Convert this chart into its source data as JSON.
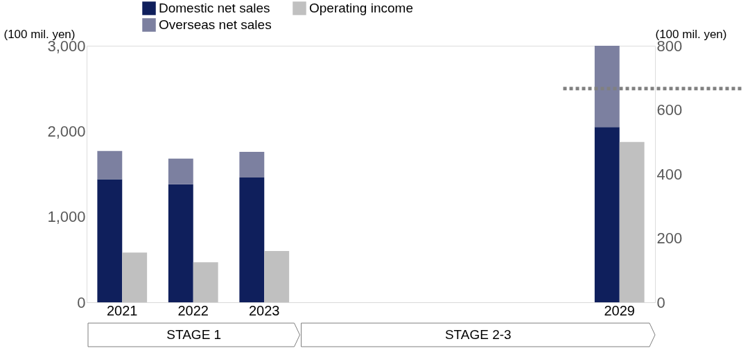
{
  "chart_data": {
    "type": "bar",
    "stacked": true,
    "categories": [
      "2021",
      "2022",
      "2023",
      null,
      null,
      null,
      null,
      "2029"
    ],
    "series": [
      {
        "name": "Domestic net sales",
        "color": "#0f1f5c",
        "values": [
          1440,
          1380,
          1460,
          null,
          null,
          null,
          null,
          2050
        ]
      },
      {
        "name": "Overseas net sales",
        "color": "#7c80a0",
        "values": [
          330,
          300,
          300,
          null,
          null,
          null,
          null,
          950
        ]
      },
      {
        "name": "Operating income",
        "color": "#c0c0c0",
        "axis": "y2",
        "values": [
          155,
          125,
          160,
          null,
          null,
          null,
          null,
          500
        ]
      }
    ],
    "ylim": [
      0,
      3000
    ],
    "yticks": [
      0,
      {
        "value": 1000,
        "label": "1,000"
      },
      {
        "value": 2000,
        "label": "2,000"
      },
      {
        "value": 3000,
        "label": "3,000"
      }
    ],
    "y2lim": [
      0,
      800
    ],
    "y2ticks": [
      0,
      200,
      400,
      600,
      800
    ],
    "ylabel": "(100 mil. yen)",
    "y2label": "(100 mil. yen)",
    "ref_lines": [
      {
        "axis": "y",
        "value": 2500,
        "color": "#808080",
        "line_style": "dotted"
      }
    ],
    "annotations": [
      "STAGE 1",
      "STAGE 2-3"
    ],
    "legend": "top left",
    "grid": false
  }
}
